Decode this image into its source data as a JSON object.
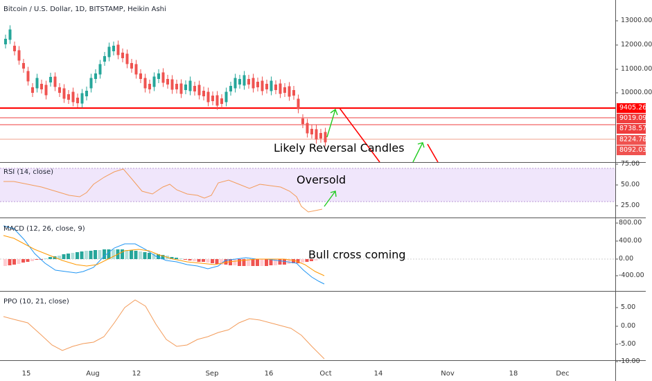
{
  "header": {
    "title": "Bitcoin / U.S. Dollar, 1D, BITSTAMP, Heikin Ashi"
  },
  "panes": {
    "rsi": {
      "title": "RSI (14, close)"
    },
    "macd": {
      "title": "MACD (12, 26, close, 9)"
    },
    "ppo": {
      "title": "PPO (10, 21, close)"
    }
  },
  "annotations": {
    "reversal": "Likely Reversal Candles",
    "oversold": "Oversold",
    "bull_cross": "Bull cross coming"
  },
  "price_axis": [
    "13000.00",
    "12000.00",
    "11000.00",
    "10000.00"
  ],
  "price_tags": [
    {
      "label": "9405.26",
      "color": "#ff0000"
    },
    {
      "label": "9019.09",
      "color": "#ef3e3e"
    },
    {
      "label": "8738.57",
      "color": "#ef3e3e"
    },
    {
      "label": "8224.78",
      "color": "#ef5350"
    },
    {
      "label": "8092.03",
      "color": "#ef5350"
    }
  ],
  "rsi_axis": [
    "75.00",
    "50.00",
    "25.00"
  ],
  "macd_axis": [
    "800.00",
    "400.00",
    "0.00",
    "-400.00"
  ],
  "ppo_axis": [
    "5.00",
    "0.00",
    "-5.00",
    "-10.00"
  ],
  "time_axis": [
    "15",
    "Aug",
    "12",
    "Sep",
    "16",
    "Oct",
    "14",
    "Nov",
    "18",
    "Dec"
  ],
  "colors": {
    "up": "#26a69a",
    "down": "#ef5350",
    "line_red": "#ff0000",
    "arrow": "#22cc22",
    "rsi_band": "#f0e6fb"
  }
}
